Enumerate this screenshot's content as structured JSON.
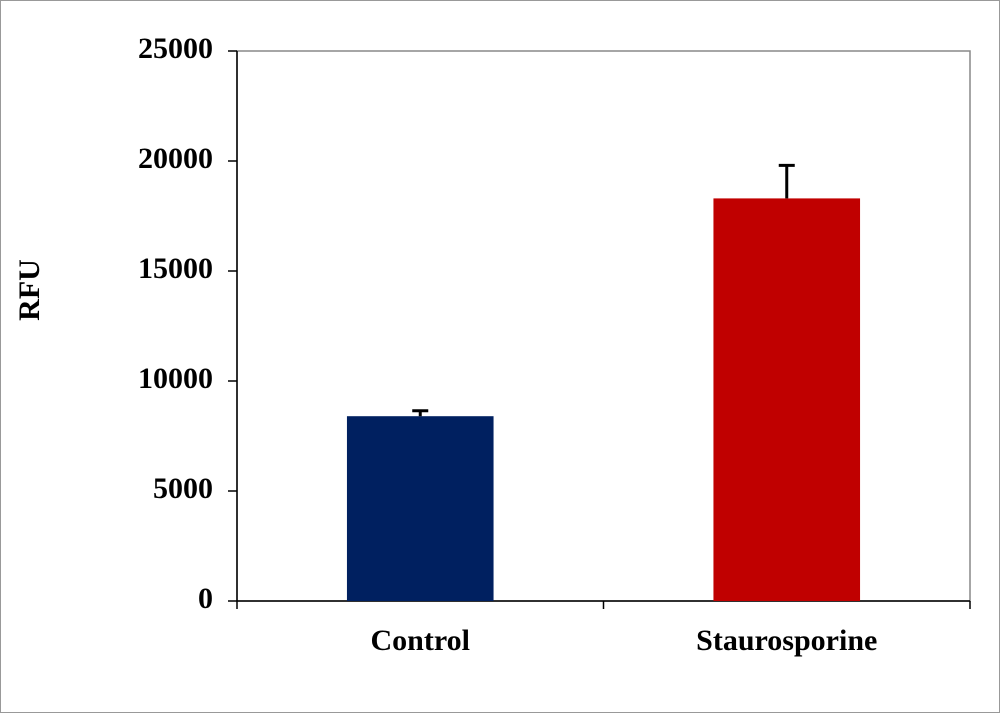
{
  "chart_data": {
    "type": "bar",
    "ylabel": "RFU",
    "categories": [
      "Control",
      "Staurosporine"
    ],
    "values": [
      8400,
      18300
    ],
    "errors": [
      250,
      1500
    ],
    "colors": [
      "#002060",
      "#c00000"
    ],
    "ylim": [
      0,
      25000
    ],
    "yticks": [
      0,
      5000,
      10000,
      15000,
      20000,
      25000
    ]
  }
}
